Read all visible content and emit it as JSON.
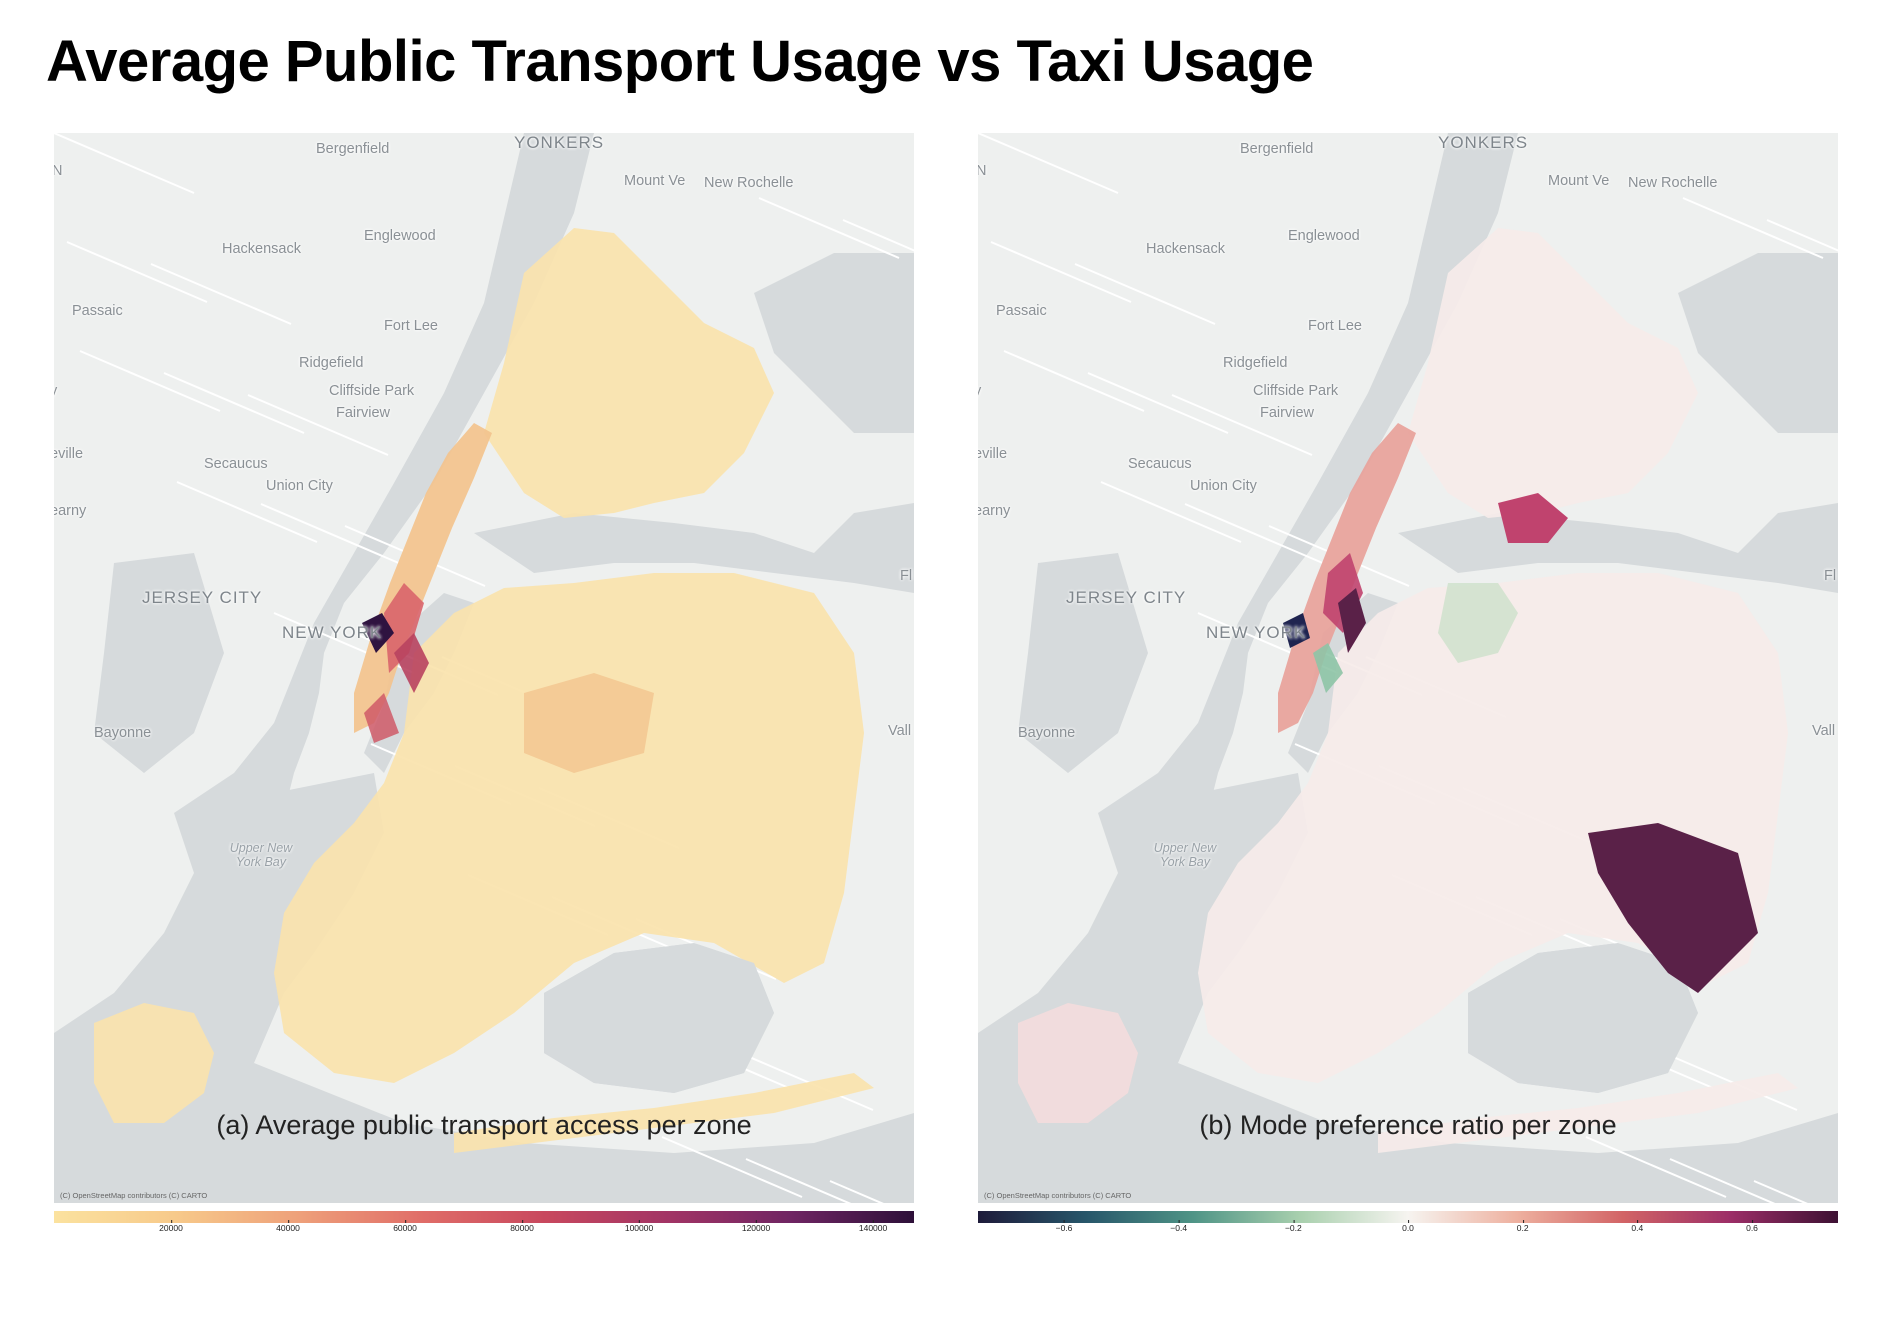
{
  "title": "Average Public Transport Usage vs Taxi Usage",
  "places": [
    "YONKERS",
    "Bergenfield",
    "Mount Ve",
    "New Rochelle",
    "Hackensack",
    "Englewood",
    "Passaic",
    "Fort Lee",
    "Ridgefield",
    "Cliffside Park",
    "Fairview",
    "Secaucus",
    "Union City",
    "JERSEY CITY",
    "NEW YORK",
    "Bayonne",
    "Upper New York Bay",
    "eville",
    "earny",
    "Vall",
    "Fl",
    "N",
    "y"
  ],
  "attribution": "(C) OpenStreetMap contributors (C) CARTO",
  "panels": [
    {
      "id": "a",
      "caption": "(a) Average public transport access per zone",
      "colorbar": {
        "scale": "magma-like sequential (yellow to dark purple)",
        "min": 0,
        "max": 147000,
        "ticks": [
          "20000",
          "40000",
          "60000",
          "80000",
          "100000",
          "120000",
          "140000"
        ],
        "tick_values": [
          20000,
          40000,
          60000,
          80000,
          100000,
          120000,
          140000
        ],
        "colors": [
          "#fbe29f",
          "#f7c98a",
          "#eea07a",
          "#e06d68",
          "#c8485e",
          "#a23465",
          "#6f2563",
          "#2d1039"
        ]
      }
    },
    {
      "id": "b",
      "caption": "(b) Mode preference ratio per zone",
      "colorbar": {
        "scale": "diverging (dark teal to white to dark purple)",
        "min": -0.75,
        "max": 0.75,
        "ticks": [
          "−0.6",
          "−0.4",
          "−0.2",
          "0.0",
          "0.2",
          "0.4",
          "0.6"
        ],
        "tick_values": [
          -0.6,
          -0.4,
          -0.2,
          0,
          0.2,
          0.4,
          0.6
        ],
        "colors": [
          "#1e1b3a",
          "#27566a",
          "#4f9486",
          "#a9d0ae",
          "#f6f4f0",
          "#eeb1a0",
          "#d26466",
          "#9c2e67",
          "#3d1133"
        ]
      }
    }
  ],
  "colors": {
    "water": "#d6dadc",
    "land": "#eef0ef",
    "panel_a_base": "#fae3ac",
    "panel_a_mid": "#f2c48f",
    "panel_a_high": "#d9646a",
    "panel_a_max": "#2f1340",
    "panel_b_base": "#f6ece9",
    "panel_b_pos": "#c0436e",
    "panel_b_max": "#5a2148",
    "panel_b_neg": "#a7cfaa",
    "panel_b_min": "#1f2450"
  }
}
